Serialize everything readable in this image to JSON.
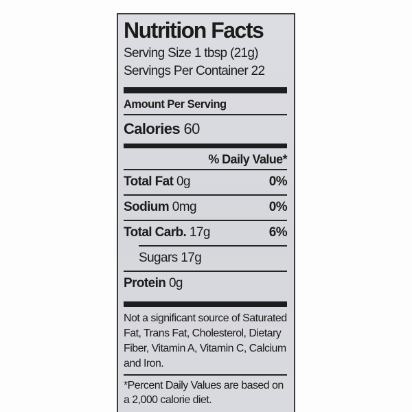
{
  "label": {
    "title": "Nutrition Facts",
    "serving_size": "Serving Size 1 tbsp (21g)",
    "servings_per_container": "Servings Per Container 22",
    "amount_per_serving": "Amount Per Serving",
    "calories_label": "Calories",
    "calories_value": "60",
    "daily_value_header": "% Daily Value*",
    "rows": [
      {
        "name": "Total Fat",
        "amount": "0g",
        "dv": "0%"
      },
      {
        "name": "Sodium",
        "amount": "0mg",
        "dv": "0%"
      },
      {
        "name": "Total Carb.",
        "amount": "17g",
        "dv": "6%"
      },
      {
        "name": "Sugars",
        "amount": "17g",
        "dv": ""
      },
      {
        "name": "Protein",
        "amount": "0g",
        "dv": ""
      }
    ],
    "not_significant": "Not a significant source of Saturated Fat, Trans Fat, Cholesterol, Dietary Fiber, Vitamin A, Vitamin C, Calcium and Iron.",
    "footnote": "*Percent Daily Values are based on a 2,000 calorie diet."
  },
  "colors": {
    "label_background": "#d8d9de",
    "text": "#1b1b1b",
    "page_background": "#fdfdfd"
  }
}
